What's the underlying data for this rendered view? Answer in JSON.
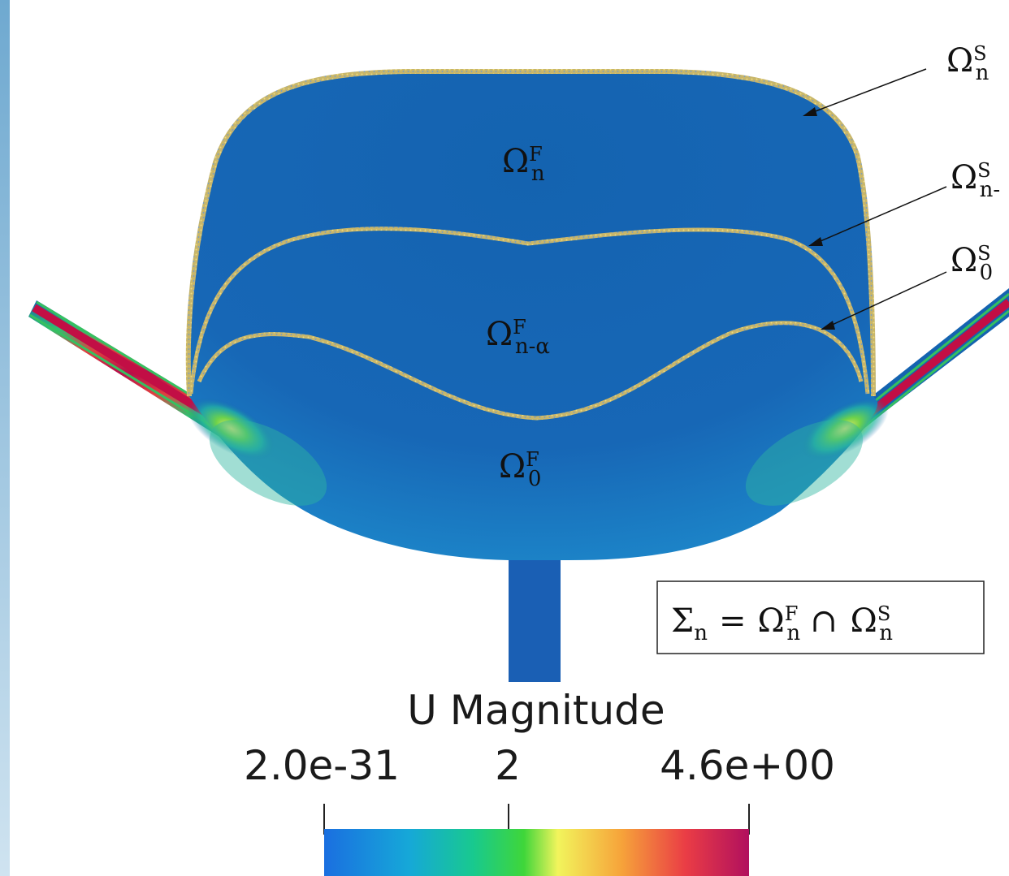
{
  "regions": {
    "fluid_n": {
      "base": "Ω",
      "sup": "F",
      "sub": "n"
    },
    "fluid_n_alpha": {
      "base": "Ω",
      "sup": "F",
      "sub": "n-α"
    },
    "fluid_0": {
      "base": "Ω",
      "sup": "F",
      "sub": "0"
    }
  },
  "interface_labels": [
    {
      "base": "Ω",
      "sup": "S",
      "sub": "n"
    },
    {
      "base": "Ω",
      "sup": "S",
      "sub": "n-"
    },
    {
      "base": "Ω",
      "sup": "S",
      "sub": "0"
    }
  ],
  "equation": {
    "lhs_base": "Σ",
    "lhs_sub": "n",
    "equals": "=",
    "term1_base": "Ω",
    "term1_sup": "F",
    "term1_sub": "n",
    "operator": "∩",
    "term2_base": "Ω",
    "term2_sup": "S",
    "term2_sub": "n"
  },
  "colorbar": {
    "title": "U Magnitude",
    "min_label": "2.0e-31",
    "mid_label": "2",
    "max_label": "4.6e+00",
    "colors": [
      "#3b4cc0",
      "#1e7fe0",
      "#14c9b0",
      "#3ad43a",
      "#f2f25a",
      "#f5a03a",
      "#e8384a",
      "#b10f5e"
    ]
  },
  "field_colors": {
    "background": "#1463b0",
    "hot": "#c8143c",
    "warm": "#f0e04a",
    "mid": "#36c87a",
    "speckle": "#d8c46a"
  }
}
